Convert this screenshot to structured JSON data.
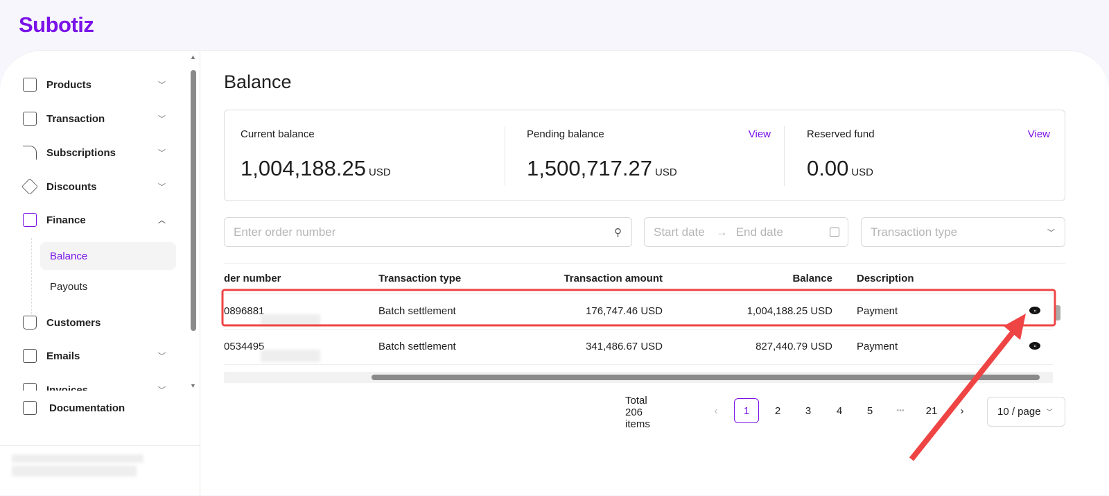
{
  "app": {
    "logo": "Subotiz"
  },
  "sidebar": {
    "items": [
      {
        "label": "Products",
        "icon": "box-icon",
        "chevron": "down"
      },
      {
        "label": "Transaction",
        "icon": "list-icon",
        "chevron": "down"
      },
      {
        "label": "Subscriptions",
        "icon": "rss-icon",
        "chevron": "down"
      },
      {
        "label": "Discounts",
        "icon": "tag-icon",
        "chevron": "down"
      },
      {
        "label": "Finance",
        "icon": "wallet-icon",
        "chevron": "up"
      },
      {
        "label": "Customers",
        "icon": "user-icon"
      },
      {
        "label": "Emails",
        "icon": "mail-icon",
        "chevron": "down"
      },
      {
        "label": "Invoices",
        "icon": "invoice-icon",
        "chevron": "down"
      }
    ],
    "finance_sub": [
      "Balance",
      "Payouts"
    ],
    "documentation": "Documentation"
  },
  "page": {
    "title": "Balance"
  },
  "cards": [
    {
      "label": "Current balance",
      "value": "1,004,188.25",
      "unit": "USD"
    },
    {
      "label": "Pending balance",
      "value": "1,500,717.27",
      "unit": "USD",
      "link": "View"
    },
    {
      "label": "Reserved fund",
      "value": "0.00",
      "unit": "USD",
      "link": "View"
    }
  ],
  "filters": {
    "order_placeholder": "Enter order number",
    "start_placeholder": "Start date",
    "end_placeholder": "End date",
    "type_placeholder": "Transaction type"
  },
  "table": {
    "columns": [
      "der number",
      "Transaction type",
      "Transaction amount",
      "Balance",
      "Description"
    ],
    "rows": [
      {
        "order": "0896881",
        "type": "Batch settlement",
        "amount": "176,747.46 USD",
        "balance": "1,004,188.25 USD",
        "description": "Payment"
      },
      {
        "order": "0534495",
        "type": "Batch settlement",
        "amount": "341,486.67 USD",
        "balance": "827,440.79 USD",
        "description": "Payment"
      }
    ]
  },
  "pagination": {
    "total": "Total 206 items",
    "pages": [
      "1",
      "2",
      "3",
      "4",
      "5",
      "21"
    ],
    "current": "1",
    "ellipsis": "•••",
    "page_size": "10 / page"
  },
  "colors": {
    "accent": "#7a12e8",
    "annotation": "#ef4444"
  }
}
